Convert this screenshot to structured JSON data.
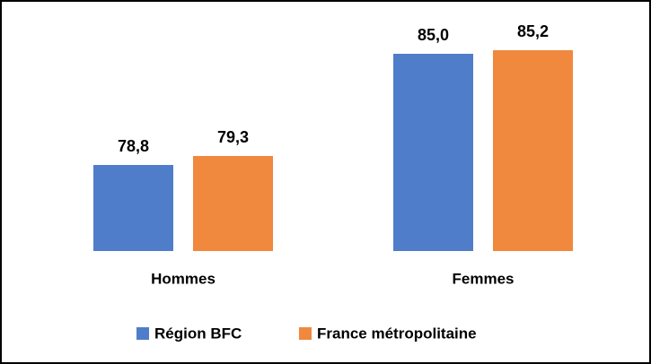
{
  "chart_data": {
    "type": "bar",
    "categories": [
      "Hommes",
      "Femmes"
    ],
    "series": [
      {
        "name": "Région BFC",
        "color": "#4f7dc9",
        "values": [
          78.8,
          85.0
        ],
        "value_labels": [
          "78,8",
          "85,0"
        ]
      },
      {
        "name": "France métropolitaine",
        "color": "#f0883e",
        "values": [
          79.3,
          85.2
        ],
        "value_labels": [
          "79,3",
          "85,2"
        ]
      }
    ],
    "ylim": [
      74,
      86
    ],
    "legend": "bottom"
  }
}
